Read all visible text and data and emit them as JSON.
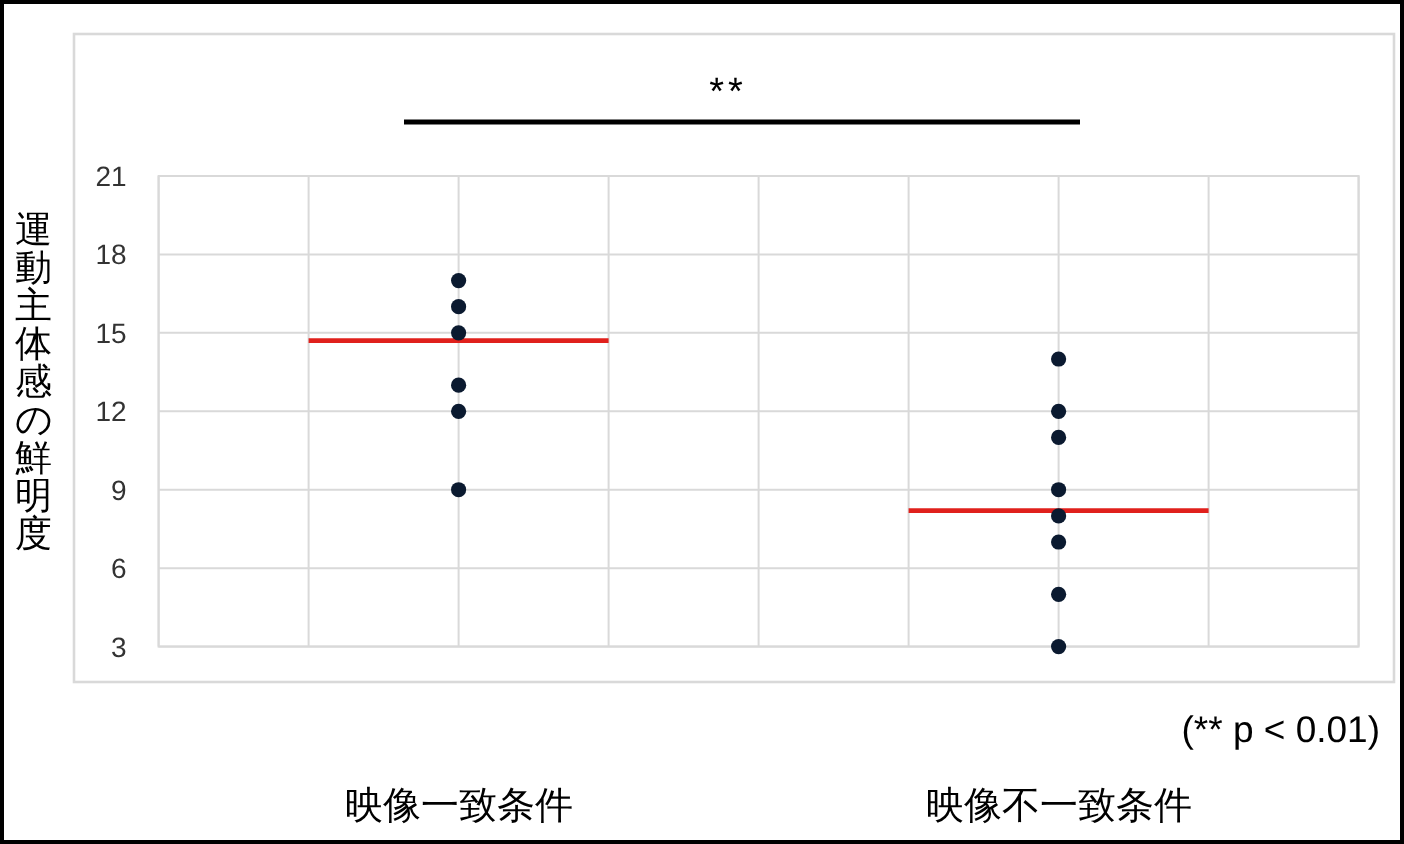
{
  "chart_data": {
    "type": "scatter",
    "ylabel": "運動主体感の鮮明度",
    "categories": [
      null,
      null,
      "映像一致条件",
      null,
      null,
      null,
      "映像不一致条件",
      null,
      null
    ],
    "ylim": [
      3,
      21
    ],
    "yticks": [
      3,
      6,
      9,
      12,
      15,
      18,
      21
    ],
    "grid": true,
    "series": [
      {
        "color": "#0b1a30",
        "marker": "circle",
        "x": [
          "映像一致条件",
          "映像一致条件",
          "映像一致条件",
          "映像一致条件",
          "映像一致条件",
          "映像一致条件"
        ],
        "values": [
          17,
          16,
          15,
          13,
          12,
          9
        ]
      },
      {
        "color": "#0b1a30",
        "marker": "circle",
        "x": [
          "映像不一致条件",
          "映像不一致条件",
          "映像不一致条件",
          "映像不一致条件",
          "映像不一致条件",
          "映像不一致条件",
          "映像不一致条件",
          "映像不一致条件"
        ],
        "values": [
          14,
          12,
          11,
          9,
          8,
          7,
          5,
          3
        ]
      },
      {
        "type": "line",
        "color": "#e0201c",
        "values": [
          null,
          14.7,
          14.7,
          14.7,
          null,
          null,
          null,
          null,
          null
        ]
      },
      {
        "type": "line",
        "color": "#e0201c",
        "values": [
          null,
          null,
          null,
          null,
          null,
          8.2,
          8.2,
          8.2,
          null
        ]
      }
    ],
    "annotations": [
      "**",
      "(** p < 0.01)"
    ]
  }
}
